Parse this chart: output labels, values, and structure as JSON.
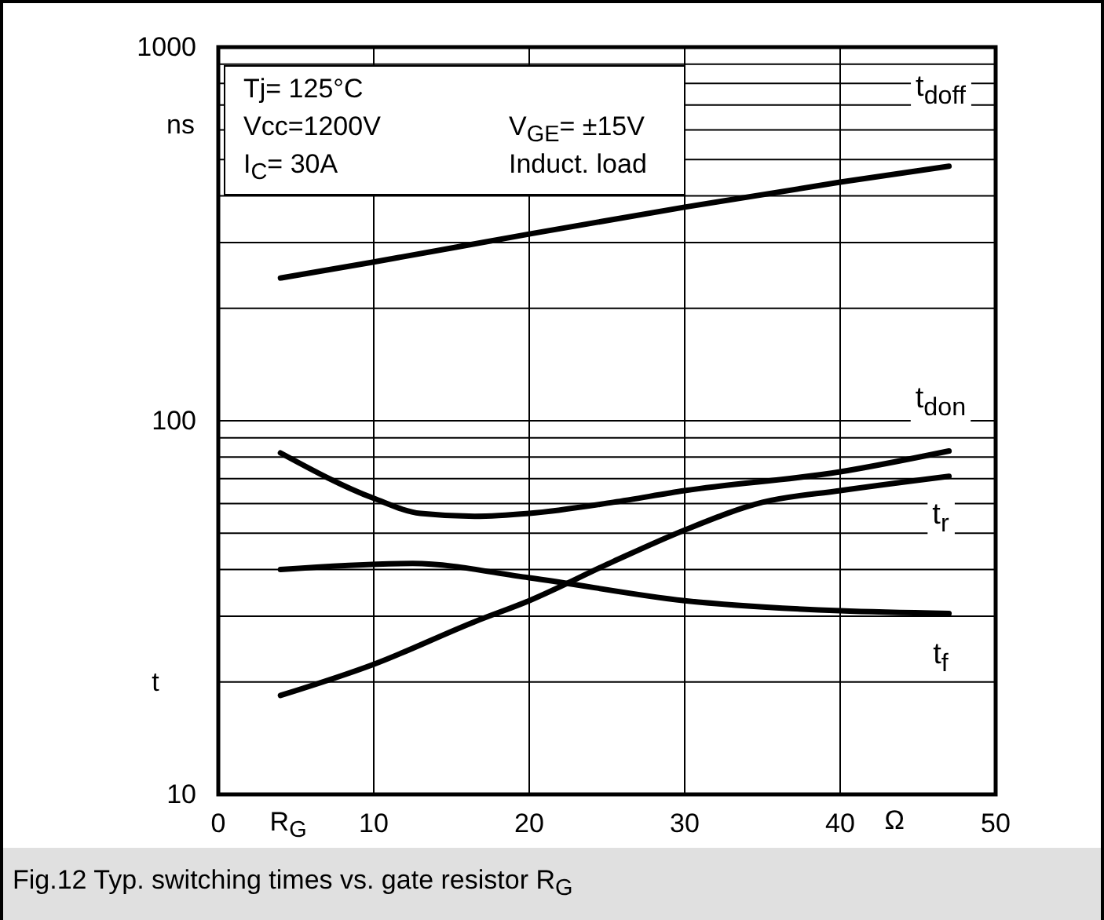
{
  "chart_data": {
    "type": "line",
    "title": "Fig.12 Typ. switching times vs. gate resistor R$_{G}$",
    "xlabel": "R$_{G}$",
    "ylabel": "t",
    "annotations": [
      "Tj= 125°C",
      "Vcc=1200V",
      "I$_{C}$= 30A",
      "V$_{GE}$= ±15V",
      "Induct. load",
      "ns",
      "Ω"
    ],
    "log": "y",
    "grid": true,
    "marker": "none",
    "line_style": "solid",
    "xlim": [
      0,
      50
    ],
    "xticks": [
      0,
      10,
      20,
      30,
      40,
      50
    ],
    "ylim": [
      10,
      1000
    ],
    "yticks": [
      10,
      {
        "value": 20,
        "label": null
      },
      {
        "value": 30,
        "label": null
      },
      {
        "value": 40,
        "label": null
      },
      {
        "value": 50,
        "label": null
      },
      {
        "value": 60,
        "label": null
      },
      {
        "value": 70,
        "label": null
      },
      {
        "value": 80,
        "label": null
      },
      {
        "value": 90,
        "label": null
      },
      100,
      {
        "value": 200,
        "label": null
      },
      {
        "value": 300,
        "label": null
      },
      {
        "value": 400,
        "label": null
      },
      {
        "value": 500,
        "label": null
      },
      {
        "value": 600,
        "label": null
      },
      {
        "value": 700,
        "label": null
      },
      {
        "value": 800,
        "label": null
      },
      {
        "value": 900,
        "label": null
      },
      1000
    ],
    "series": [
      {
        "name": "t$_{doff}$",
        "color": "#000000",
        "x": [
          4,
          10,
          20,
          30,
          40,
          47
        ],
        "values": [
          241,
          266,
          316,
          373,
          435,
          480
        ]
      },
      {
        "name": "t$_{don}$",
        "color": "#000000",
        "x": [
          4,
          10,
          13,
          16.5,
          20,
          25.4,
          30,
          40,
          47
        ],
        "values": [
          82,
          62,
          56.5,
          55.5,
          56.5,
          60.5,
          65,
          73,
          83
        ]
      },
      {
        "name": "t$_{r}$",
        "color": "#000000",
        "x": [
          4,
          10,
          16.5,
          20,
          25.4,
          30,
          35,
          40,
          47
        ],
        "values": [
          18.4,
          22.3,
          29,
          33,
          42,
          51,
          60.5,
          65,
          71
        ]
      },
      {
        "name": "t$_{f}$",
        "color": "#000000",
        "x": [
          4,
          12.5,
          20,
          30,
          40,
          47
        ],
        "values": [
          40,
          41.5,
          38,
          33,
          31,
          30.5
        ]
      }
    ]
  }
}
